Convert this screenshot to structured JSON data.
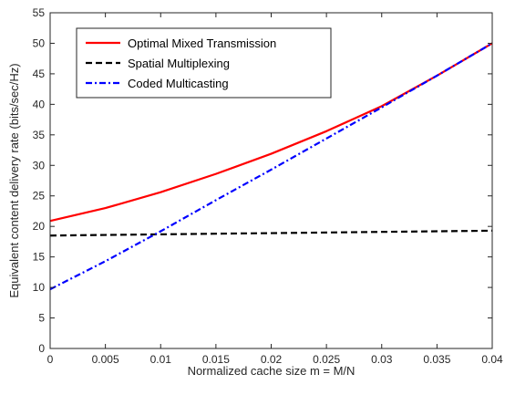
{
  "chart_data": {
    "type": "line",
    "title": "",
    "xlabel": "Normalized cache size m = M/N",
    "ylabel": "Equivalent content delivery rate (bits/sec/Hz)",
    "xlim": [
      0,
      0.04
    ],
    "ylim": [
      0,
      55
    ],
    "x_ticks": [
      0,
      0.005,
      0.01,
      0.015,
      0.02,
      0.025,
      0.03,
      0.035,
      0.04
    ],
    "x_tick_labels": [
      "0",
      "0.005",
      "0.01",
      "0.015",
      "0.02",
      "0.025",
      "0.03",
      "0.035",
      "0.04"
    ],
    "y_ticks": [
      0,
      5,
      10,
      15,
      20,
      25,
      30,
      35,
      40,
      45,
      50,
      55
    ],
    "y_tick_labels": [
      "0",
      "5",
      "10",
      "15",
      "20",
      "25",
      "30",
      "35",
      "40",
      "45",
      "50",
      "55"
    ],
    "grid": false,
    "legend_position": "top-left",
    "x": [
      0,
      0.005,
      0.01,
      0.015,
      0.02,
      0.025,
      0.03,
      0.035,
      0.04
    ],
    "series": [
      {
        "name": "Optimal Mixed Transmission",
        "color": "#ff0000",
        "line_style": "solid",
        "values": [
          20.9,
          23.0,
          25.6,
          28.6,
          31.9,
          35.6,
          39.7,
          44.7,
          50.0
        ]
      },
      {
        "name": "Spatial Multiplexing",
        "color": "#000000",
        "line_style": "dashed",
        "values": [
          18.5,
          18.6,
          18.7,
          18.8,
          18.9,
          19.0,
          19.1,
          19.2,
          19.3
        ]
      },
      {
        "name": "Coded Multicasting",
        "color": "#0000ff",
        "line_style": "dash-dot",
        "values": [
          9.7,
          14.3,
          19.2,
          24.3,
          29.3,
          34.4,
          39.5,
          44.7,
          50.0
        ]
      }
    ]
  }
}
